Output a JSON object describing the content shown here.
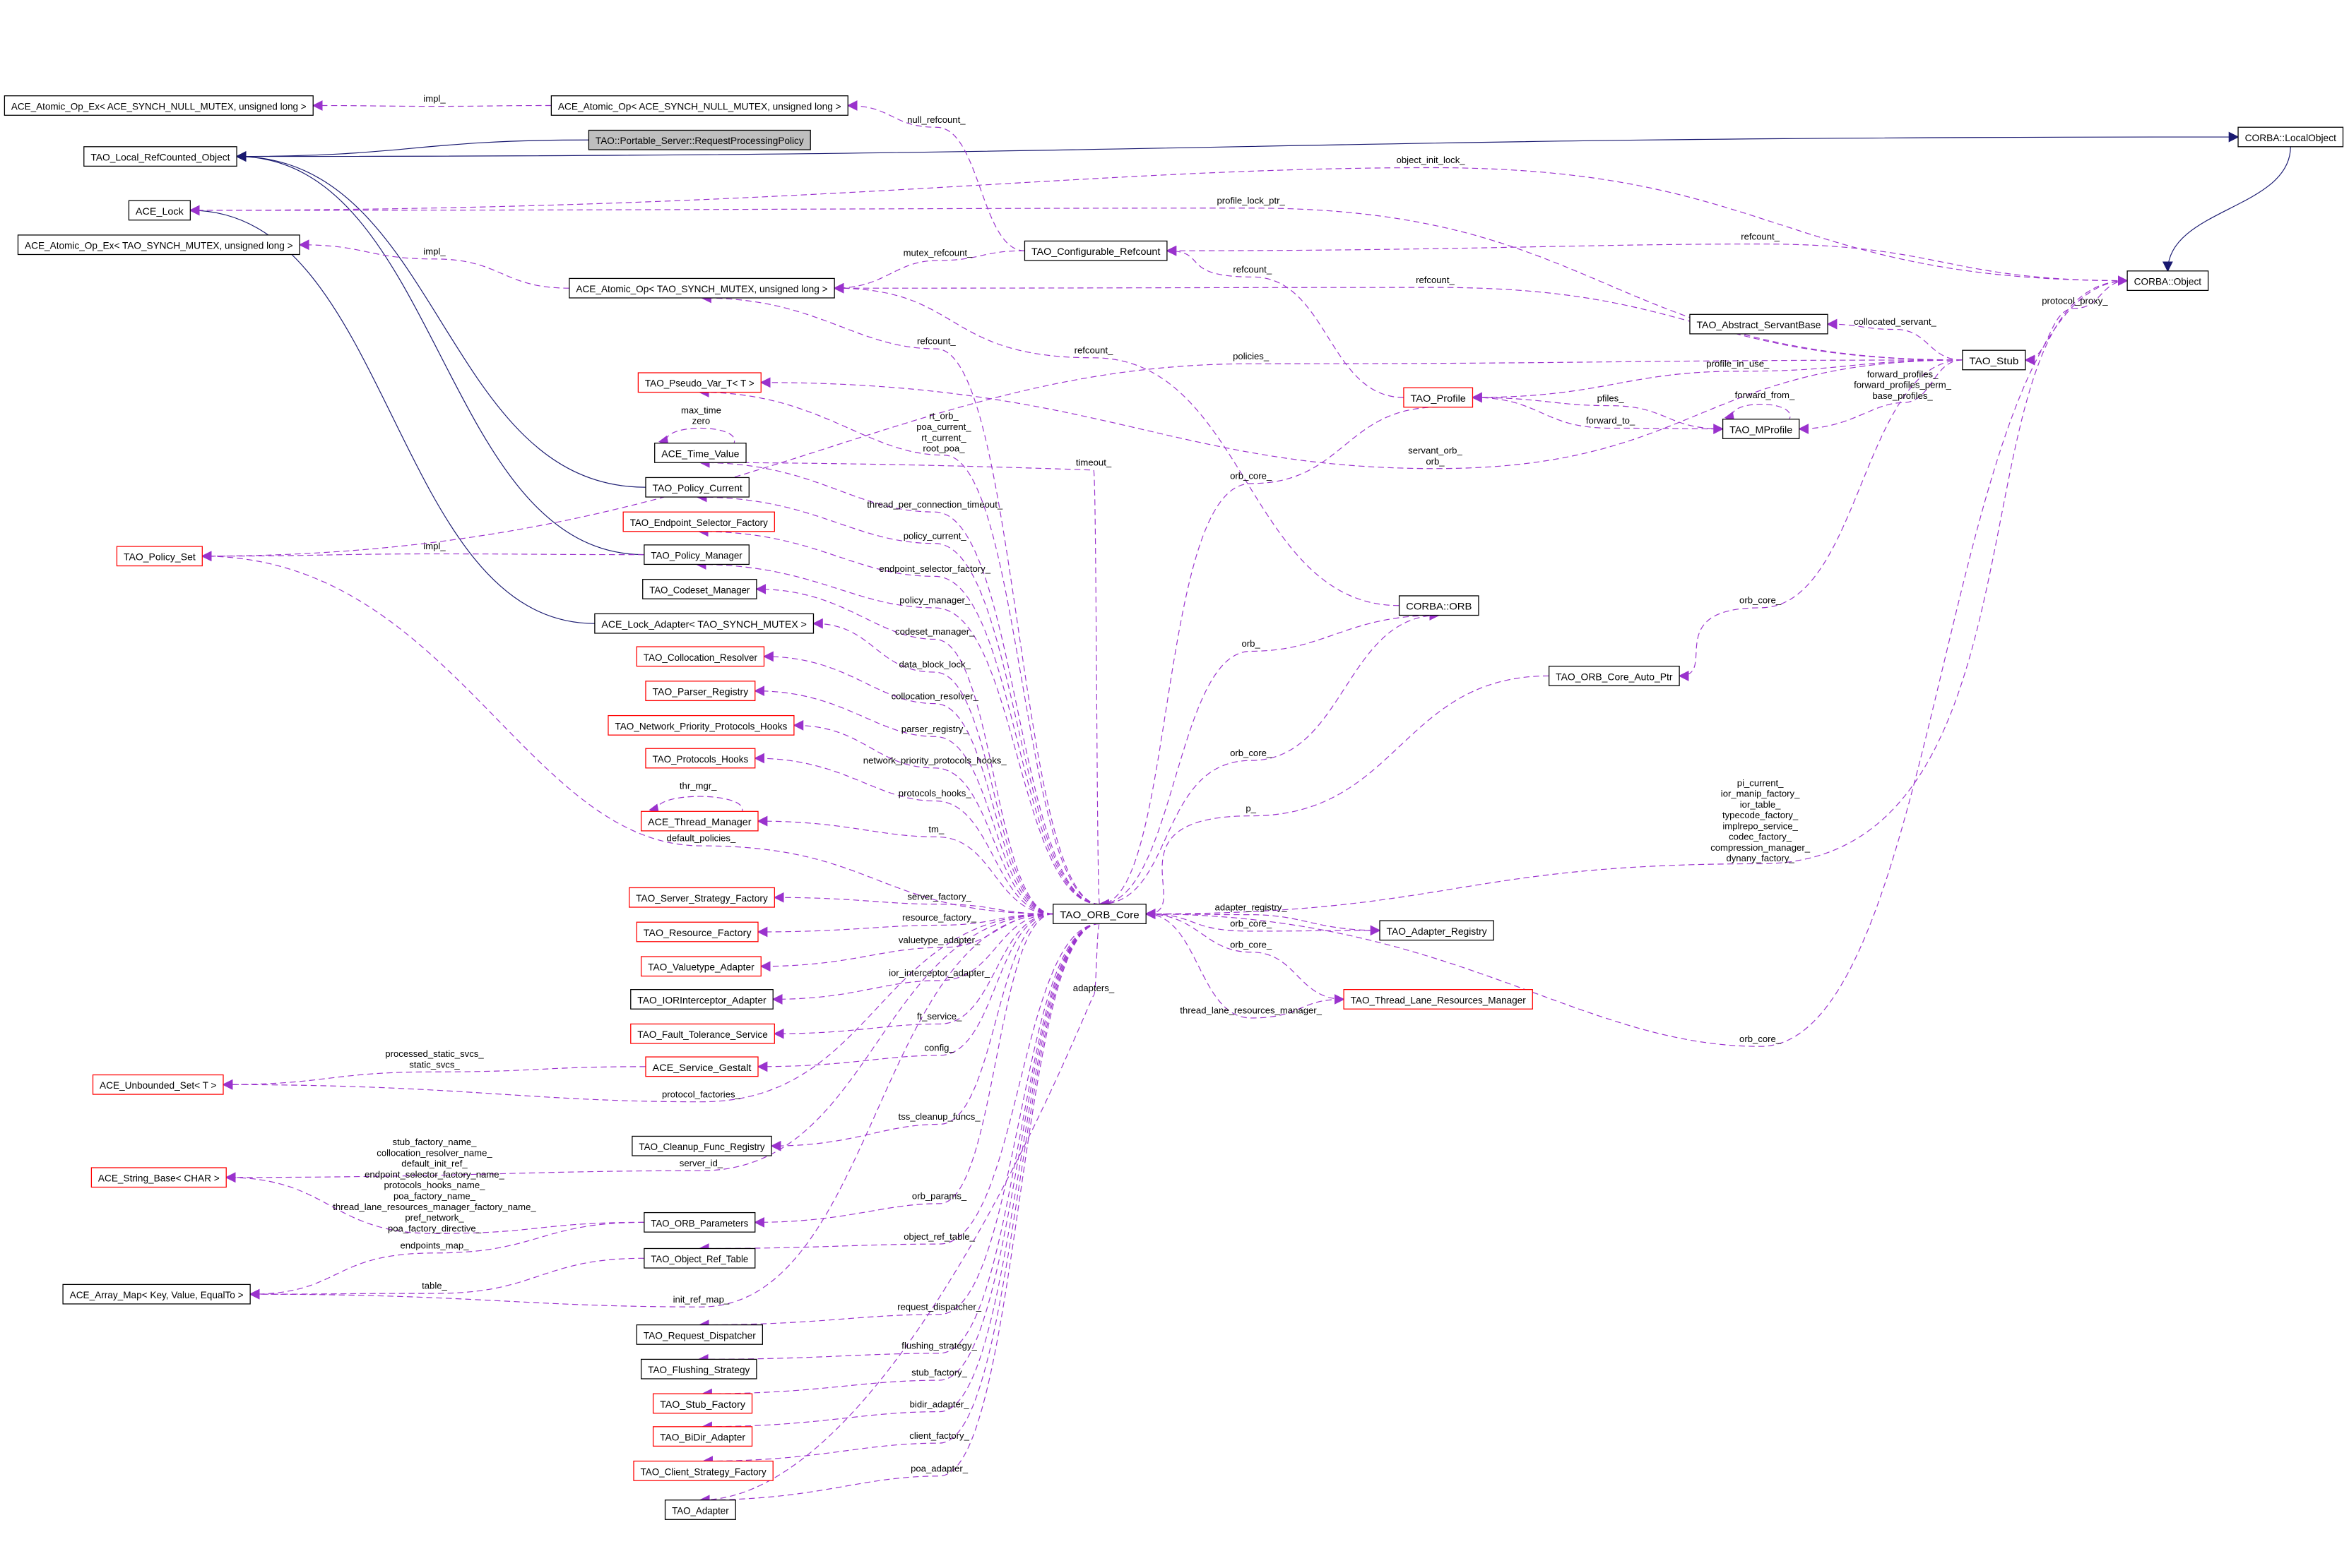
{
  "colors": {
    "uses_edge": "#9a32cd",
    "inherit_edge": "#191970",
    "highlight_fill": "#bfbfbf",
    "incomplete_border": "#ff0000"
  },
  "nodes": [
    {
      "label": "ACE_Atomic_Op_Ex< ACE_SYNCH_NULL_MUTEX, unsigned long >",
      "style": "normal"
    },
    {
      "label": "ACE_Atomic_Op< ACE_SYNCH_NULL_MUTEX, unsigned long >",
      "style": "normal"
    },
    {
      "label": "TAO::Portable_Server::RequestProcessingPolicy",
      "style": "gray"
    },
    {
      "label": "TAO_Local_RefCounted_Object",
      "style": "normal"
    },
    {
      "label": "ACE_Lock",
      "style": "normal"
    },
    {
      "label": "ACE_Atomic_Op_Ex< TAO_SYNCH_MUTEX, unsigned long >",
      "style": "normal"
    },
    {
      "label": "ACE_Atomic_Op< TAO_SYNCH_MUTEX, unsigned long >",
      "style": "normal"
    },
    {
      "label": "TAO_Configurable_Refcount",
      "style": "normal"
    },
    {
      "label": "CORBA::LocalObject",
      "style": "normal"
    },
    {
      "label": "CORBA::Object",
      "style": "normal"
    },
    {
      "label": "TAO_Abstract_ServantBase",
      "style": "normal"
    },
    {
      "label": "TAO_Stub",
      "style": "normal"
    },
    {
      "label": "TAO_Profile",
      "style": "red"
    },
    {
      "label": "TAO_MProfile",
      "style": "normal"
    },
    {
      "label": "TAO_Pseudo_Var_T< T >",
      "style": "red"
    },
    {
      "label": "ACE_Time_Value",
      "style": "normal"
    },
    {
      "label": "TAO_Policy_Current",
      "style": "normal"
    },
    {
      "label": "TAO_Endpoint_Selector_Factory",
      "style": "red"
    },
    {
      "label": "TAO_Policy_Set",
      "style": "red"
    },
    {
      "label": "TAO_Policy_Manager",
      "style": "normal"
    },
    {
      "label": "TAO_Codeset_Manager",
      "style": "normal"
    },
    {
      "label": "ACE_Lock_Adapter< TAO_SYNCH_MUTEX >",
      "style": "normal"
    },
    {
      "label": "TAO_Collocation_Resolver",
      "style": "red"
    },
    {
      "label": "TAO_Parser_Registry",
      "style": "red"
    },
    {
      "label": "TAO_Network_Priority_Protocols_Hooks",
      "style": "red"
    },
    {
      "label": "TAO_Protocols_Hooks",
      "style": "red"
    },
    {
      "label": "ACE_Thread_Manager",
      "style": "red"
    },
    {
      "label": "CORBA::ORB",
      "style": "normal"
    },
    {
      "label": "TAO_ORB_Core_Auto_Ptr",
      "style": "normal"
    },
    {
      "label": "TAO_ORB_Core",
      "style": "normal"
    },
    {
      "label": "TAO_Adapter_Registry",
      "style": "normal"
    },
    {
      "label": "TAO_Thread_Lane_Resources_Manager",
      "style": "red"
    },
    {
      "label": "TAO_Server_Strategy_Factory",
      "style": "red"
    },
    {
      "label": "TAO_Resource_Factory",
      "style": "red"
    },
    {
      "label": "TAO_Valuetype_Adapter",
      "style": "red"
    },
    {
      "label": "TAO_IORInterceptor_Adapter",
      "style": "normal"
    },
    {
      "label": "TAO_Fault_Tolerance_Service",
      "style": "red"
    },
    {
      "label": "ACE_Service_Gestalt",
      "style": "red"
    },
    {
      "label": "ACE_Unbounded_Set< T >",
      "style": "red"
    },
    {
      "label": "TAO_Cleanup_Func_Registry",
      "style": "normal"
    },
    {
      "label": "ACE_String_Base< CHAR >",
      "style": "red"
    },
    {
      "label": "TAO_ORB_Parameters",
      "style": "normal"
    },
    {
      "label": "TAO_Object_Ref_Table",
      "style": "normal"
    },
    {
      "label": "ACE_Array_Map< Key, Value, EqualTo >",
      "style": "normal"
    },
    {
      "label": "TAO_Request_Dispatcher",
      "style": "normal"
    },
    {
      "label": "TAO_Flushing_Strategy",
      "style": "normal"
    },
    {
      "label": "TAO_Stub_Factory",
      "style": "red"
    },
    {
      "label": "TAO_BiDir_Adapter",
      "style": "red"
    },
    {
      "label": "TAO_Client_Strategy_Factory",
      "style": "red"
    },
    {
      "label": "TAO_Adapter",
      "style": "normal"
    }
  ],
  "edges": [
    {
      "from": 2,
      "to": 3,
      "kind": "inherits",
      "labels": []
    },
    {
      "from": 3,
      "to": 8,
      "kind": "inherits",
      "labels": []
    },
    {
      "from": 8,
      "to": 9,
      "kind": "inherits",
      "labels": []
    },
    {
      "from": 16,
      "to": 3,
      "kind": "inherits",
      "labels": []
    },
    {
      "from": 19,
      "to": 3,
      "kind": "inherits",
      "labels": []
    },
    {
      "from": 21,
      "to": 4,
      "kind": "inherits",
      "labels": []
    },
    {
      "from": 1,
      "to": 0,
      "kind": "uses",
      "labels": [
        "impl_"
      ]
    },
    {
      "from": 7,
      "to": 1,
      "kind": "uses",
      "labels": [
        "null_refcount_"
      ]
    },
    {
      "from": 9,
      "to": 4,
      "kind": "uses",
      "labels": [
        "object_init_lock_"
      ]
    },
    {
      "from": 11,
      "to": 4,
      "kind": "uses",
      "labels": [
        "profile_lock_ptr_"
      ]
    },
    {
      "from": 6,
      "to": 5,
      "kind": "uses",
      "labels": [
        "impl_"
      ]
    },
    {
      "from": 7,
      "to": 6,
      "kind": "uses",
      "labels": [
        "mutex_refcount_"
      ]
    },
    {
      "from": 9,
      "to": 7,
      "kind": "uses",
      "labels": [
        "refcount_"
      ]
    },
    {
      "from": 11,
      "to": 6,
      "kind": "uses",
      "labels": [
        "refcount_"
      ]
    },
    {
      "from": 12,
      "to": 7,
      "kind": "uses",
      "labels": [
        "refcount_"
      ]
    },
    {
      "from": 29,
      "to": 6,
      "kind": "uses",
      "labels": [
        "refcount_"
      ]
    },
    {
      "from": 27,
      "to": 6,
      "kind": "uses",
      "labels": [
        "refcount_"
      ]
    },
    {
      "from": 9,
      "to": 11,
      "kind": "uses",
      "labels": [
        "protocol_proxy_"
      ]
    },
    {
      "from": 11,
      "to": 10,
      "kind": "uses",
      "labels": [
        "collocated_servant_"
      ]
    },
    {
      "from": 11,
      "to": 12,
      "kind": "uses",
      "labels": [
        "profile_in_use_"
      ]
    },
    {
      "from": 13,
      "to": 12,
      "kind": "uses",
      "labels": [
        "pfiles_"
      ]
    },
    {
      "from": 12,
      "to": 13,
      "kind": "uses",
      "labels": [
        "forward_to_"
      ]
    },
    {
      "from": 13,
      "to": 13,
      "kind": "uses",
      "labels": [
        "forward_from_"
      ]
    },
    {
      "from": 11,
      "to": 13,
      "kind": "uses",
      "labels": [
        "forward_profiles_",
        "forward_profiles_perm_",
        "base_profiles_"
      ]
    },
    {
      "from": 11,
      "to": 18,
      "kind": "uses",
      "labels": [
        "policies_"
      ]
    },
    {
      "from": 11,
      "to": 14,
      "kind": "uses",
      "labels": [
        "servant_orb_",
        "orb_"
      ]
    },
    {
      "from": 12,
      "to": 29,
      "kind": "uses",
      "labels": [
        "orb_core_"
      ]
    },
    {
      "from": 11,
      "to": 28,
      "kind": "uses",
      "labels": [
        "orb_core_"
      ]
    },
    {
      "from": 28,
      "to": 29,
      "kind": "uses",
      "labels": [
        "p_"
      ]
    },
    {
      "from": 29,
      "to": 14,
      "kind": "uses",
      "labels": [
        "rt_orb_",
        "poa_current_",
        "rt_current_",
        "root_poa_"
      ]
    },
    {
      "from": 29,
      "to": 15,
      "kind": "uses",
      "labels": [
        "timeout_"
      ]
    },
    {
      "from": 15,
      "to": 15,
      "kind": "uses",
      "labels": [
        "max_time",
        "zero"
      ]
    },
    {
      "from": 29,
      "to": 15,
      "kind": "uses",
      "labels": [
        "thread_per_connection_timeout_"
      ]
    },
    {
      "from": 29,
      "to": 16,
      "kind": "uses",
      "labels": [
        "policy_current_"
      ]
    },
    {
      "from": 29,
      "to": 17,
      "kind": "uses",
      "labels": [
        "endpoint_selector_factory_"
      ]
    },
    {
      "from": 19,
      "to": 18,
      "kind": "uses",
      "labels": [
        "impl_"
      ]
    },
    {
      "from": 29,
      "to": 19,
      "kind": "uses",
      "labels": [
        "policy_manager_"
      ]
    },
    {
      "from": 29,
      "to": 20,
      "kind": "uses",
      "labels": [
        "codeset_manager_"
      ]
    },
    {
      "from": 29,
      "to": 21,
      "kind": "uses",
      "labels": [
        "data_block_lock_"
      ]
    },
    {
      "from": 29,
      "to": 22,
      "kind": "uses",
      "labels": [
        "collocation_resolver_"
      ]
    },
    {
      "from": 29,
      "to": 23,
      "kind": "uses",
      "labels": [
        "parser_registry_"
      ]
    },
    {
      "from": 29,
      "to": 24,
      "kind": "uses",
      "labels": [
        "network_priority_protocols_hooks_"
      ]
    },
    {
      "from": 29,
      "to": 25,
      "kind": "uses",
      "labels": [
        "protocols_hooks_"
      ]
    },
    {
      "from": 26,
      "to": 26,
      "kind": "uses",
      "labels": [
        "thr_mgr_"
      ]
    },
    {
      "from": 29,
      "to": 26,
      "kind": "uses",
      "labels": [
        "tm_"
      ]
    },
    {
      "from": 29,
      "to": 18,
      "kind": "uses",
      "labels": [
        "default_policies_"
      ]
    },
    {
      "from": 29,
      "to": 27,
      "kind": "uses",
      "labels": [
        "orb_"
      ]
    },
    {
      "from": 27,
      "to": 29,
      "kind": "uses",
      "labels": [
        "orb_core_"
      ]
    },
    {
      "from": 29,
      "to": 9,
      "kind": "uses",
      "labels": [
        "pi_current_",
        "ior_manip_factory_",
        "ior_table_",
        "typecode_factory_",
        "implrepo_service_",
        "codec_factory_",
        "compression_manager_",
        "dynany_factory_"
      ]
    },
    {
      "from": 29,
      "to": 32,
      "kind": "uses",
      "labels": [
        "server_factory_"
      ]
    },
    {
      "from": 29,
      "to": 33,
      "kind": "uses",
      "labels": [
        "resource_factory_"
      ]
    },
    {
      "from": 29,
      "to": 30,
      "kind": "uses",
      "labels": [
        "adapter_registry_"
      ]
    },
    {
      "from": 30,
      "to": 29,
      "kind": "uses",
      "labels": [
        "orb_core_"
      ]
    },
    {
      "from": 31,
      "to": 29,
      "kind": "uses",
      "labels": [
        "orb_core_"
      ]
    },
    {
      "from": 29,
      "to": 31,
      "kind": "uses",
      "labels": [
        "thread_lane_resources_manager_"
      ]
    },
    {
      "from": 29,
      "to": 34,
      "kind": "uses",
      "labels": [
        "valuetype_adapter_"
      ]
    },
    {
      "from": 29,
      "to": 35,
      "kind": "uses",
      "labels": [
        "ior_interceptor_adapter_"
      ]
    },
    {
      "from": 29,
      "to": 36,
      "kind": "uses",
      "labels": [
        "ft_service_"
      ]
    },
    {
      "from": 29,
      "to": 37,
      "kind": "uses",
      "labels": [
        "config_"
      ]
    },
    {
      "from": 37,
      "to": 38,
      "kind": "uses",
      "labels": [
        "processed_static_svcs_",
        "static_svcs_"
      ]
    },
    {
      "from": 29,
      "to": 38,
      "kind": "uses",
      "labels": [
        "protocol_factories_"
      ]
    },
    {
      "from": 29,
      "to": 39,
      "kind": "uses",
      "labels": [
        "tss_cleanup_funcs_"
      ]
    },
    {
      "from": 29,
      "to": 40,
      "kind": "uses",
      "labels": [
        "server_id_"
      ]
    },
    {
      "from": 41,
      "to": 40,
      "kind": "uses",
      "labels": [
        "stub_factory_name_",
        "collocation_resolver_name_",
        "default_init_ref_",
        "endpoint_selector_factory_name_",
        "protocols_hooks_name_",
        "poa_factory_name_",
        "thread_lane_resources_manager_factory_name_",
        "pref_network_",
        "poa_factory_directive_"
      ]
    },
    {
      "from": 29,
      "to": 41,
      "kind": "uses",
      "labels": [
        "orb_params_"
      ]
    },
    {
      "from": 41,
      "to": 43,
      "kind": "uses",
      "labels": [
        "endpoints_map_"
      ]
    },
    {
      "from": 42,
      "to": 43,
      "kind": "uses",
      "labels": [
        "table_"
      ]
    },
    {
      "from": 29,
      "to": 42,
      "kind": "uses",
      "labels": [
        "object_ref_table_"
      ]
    },
    {
      "from": 29,
      "to": 43,
      "kind": "uses",
      "labels": [
        "init_ref_map_"
      ]
    },
    {
      "from": 29,
      "to": 44,
      "kind": "uses",
      "labels": [
        "request_dispatcher_"
      ]
    },
    {
      "from": 29,
      "to": 45,
      "kind": "uses",
      "labels": [
        "flushing_strategy_"
      ]
    },
    {
      "from": 29,
      "to": 46,
      "kind": "uses",
      "labels": [
        "stub_factory_"
      ]
    },
    {
      "from": 29,
      "to": 47,
      "kind": "uses",
      "labels": [
        "bidir_adapter_"
      ]
    },
    {
      "from": 29,
      "to": 48,
      "kind": "uses",
      "labels": [
        "client_factory_"
      ]
    },
    {
      "from": 29,
      "to": 49,
      "kind": "uses",
      "labels": [
        "poa_adapter_"
      ]
    },
    {
      "from": 29,
      "to": 49,
      "kind": "uses",
      "labels": [
        "adapters_"
      ]
    },
    {
      "from": 9,
      "to": 29,
      "kind": "uses",
      "labels": [
        "orb_core_"
      ]
    }
  ]
}
